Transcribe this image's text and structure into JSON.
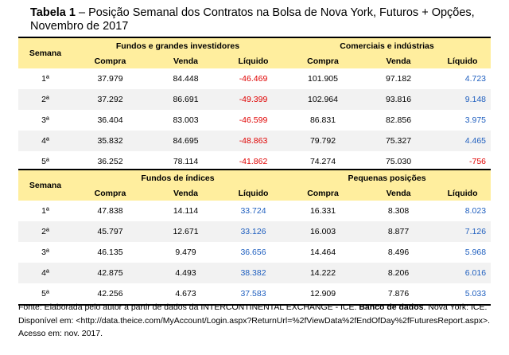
{
  "caption": {
    "label": "Tabela 1",
    "text": " – Posição Semanal dos Contratos na Bolsa de Nova York, Futuros + Opções, Novembro de 2017"
  },
  "table1": {
    "semana_header": "Semana",
    "group_a": "Fundos e grandes investidores",
    "group_b": "Comerciais e indústrias",
    "cols": [
      "Compra",
      "Venda",
      "Líquido",
      "Compra",
      "Venda",
      "Líquido"
    ],
    "rows": [
      {
        "semana": "1ª",
        "a_compra": "37.979",
        "a_venda": "84.448",
        "a_liquido": "-46.469",
        "b_compra": "101.905",
        "b_venda": "97.182",
        "b_liquido": "4.723"
      },
      {
        "semana": "2ª",
        "a_compra": "37.292",
        "a_venda": "86.691",
        "a_liquido": "-49.399",
        "b_compra": "102.964",
        "b_venda": "93.816",
        "b_liquido": "9.148"
      },
      {
        "semana": "3ª",
        "a_compra": "36.404",
        "a_venda": "83.003",
        "a_liquido": "-46.599",
        "b_compra": "86.831",
        "b_venda": "82.856",
        "b_liquido": "3.975"
      },
      {
        "semana": "4ª",
        "a_compra": "35.832",
        "a_venda": "84.695",
        "a_liquido": "-48.863",
        "b_compra": "79.792",
        "b_venda": "75.327",
        "b_liquido": "4.465"
      },
      {
        "semana": "5ª",
        "a_compra": "36.252",
        "a_venda": "78.114",
        "a_liquido": "-41.862",
        "b_compra": "74.274",
        "b_venda": "75.030",
        "b_liquido": "-756"
      }
    ]
  },
  "table2": {
    "semana_header": "Semana",
    "group_a": "Fundos de índices",
    "group_b": "Pequenas posições",
    "cols": [
      "Compra",
      "Venda",
      "Líquido",
      "Compra",
      "Venda",
      "Líquido"
    ],
    "rows": [
      {
        "semana": "1ª",
        "a_compra": "47.838",
        "a_venda": "14.114",
        "a_liquido": "33.724",
        "b_compra": "16.331",
        "b_venda": "8.308",
        "b_liquido": "8.023"
      },
      {
        "semana": "2ª",
        "a_compra": "45.797",
        "a_venda": "12.671",
        "a_liquido": "33.126",
        "b_compra": "16.003",
        "b_venda": "8.877",
        "b_liquido": "7.126"
      },
      {
        "semana": "3ª",
        "a_compra": "46.135",
        "a_venda": "9.479",
        "a_liquido": "36.656",
        "b_compra": "14.464",
        "b_venda": "8.496",
        "b_liquido": "5.968"
      },
      {
        "semana": "4ª",
        "a_compra": "42.875",
        "a_venda": "4.493",
        "a_liquido": "38.382",
        "b_compra": "14.222",
        "b_venda": "8.206",
        "b_liquido": "6.016"
      },
      {
        "semana": "5ª",
        "a_compra": "42.256",
        "a_venda": "4.673",
        "a_liquido": "37.583",
        "b_compra": "12.909",
        "b_venda": "7.876",
        "b_liquido": "5.033"
      }
    ]
  },
  "source": {
    "prefix": "Fonte: Elaborada pelo autor a partir de dados da INTERCONTINENTAL EXCHANGE - ICE. ",
    "bold": "Banco de dados",
    "suffix": ". Nova York: ICE. Disponível em: <http://data.theice.com/MyAccount/Login.aspx?ReturnUrl=%2fViewData%2fEndOfDay%2fFuturesReport.aspx>. Acesso em: nov. 2017."
  },
  "colors": {
    "header_bg": "#ffee9e",
    "negative": "#e00000",
    "positive": "#1f5fbf",
    "alt_row_bg": "#f2f2f2"
  }
}
